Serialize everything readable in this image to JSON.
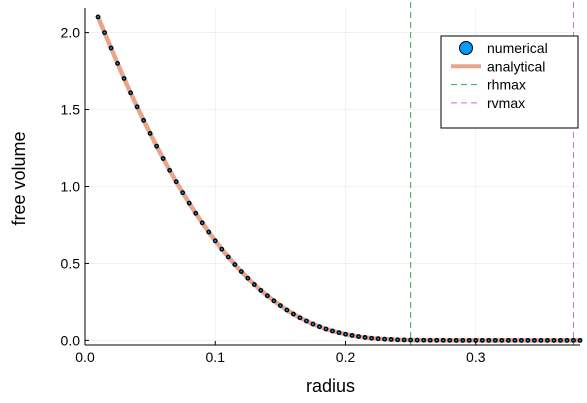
{
  "chart_data": {
    "type": "line",
    "title": "",
    "xlabel": "radius",
    "ylabel": "free volume",
    "xlim": [
      0.0,
      0.38
    ],
    "ylim": [
      -0.03,
      2.16
    ],
    "xticks": [
      0.0,
      0.1,
      0.2,
      0.3
    ],
    "yticks": [
      0.0,
      0.5,
      1.0,
      1.5,
      2.0
    ],
    "xtick_labels": [
      "0.0",
      "0.1",
      "0.2",
      "0.3"
    ],
    "ytick_labels": [
      "0.0",
      "0.5",
      "1.0",
      "1.5",
      "2.0"
    ],
    "grid": true,
    "legend_position": "top-right",
    "series": [
      {
        "name": "numerical",
        "kind": "scatter",
        "color": "#009AFA",
        "x": [
          0.01,
          0.015,
          0.02,
          0.025,
          0.03,
          0.035,
          0.04,
          0.045,
          0.05,
          0.055,
          0.06,
          0.065,
          0.07,
          0.075,
          0.08,
          0.085,
          0.09,
          0.095,
          0.1,
          0.105,
          0.11,
          0.115,
          0.12,
          0.125,
          0.13,
          0.135,
          0.14,
          0.145,
          0.15,
          0.155,
          0.16,
          0.165,
          0.17,
          0.175,
          0.18,
          0.185,
          0.19,
          0.195,
          0.2,
          0.205,
          0.21,
          0.215,
          0.22,
          0.225,
          0.23,
          0.235,
          0.24,
          0.245,
          0.25,
          0.255,
          0.26,
          0.265,
          0.27,
          0.275,
          0.28,
          0.285,
          0.29,
          0.295,
          0.3,
          0.305,
          0.31,
          0.315,
          0.32,
          0.325,
          0.33,
          0.335,
          0.34,
          0.345,
          0.35,
          0.355,
          0.36,
          0.365,
          0.37,
          0.375,
          0.38
        ],
        "y": [
          2.102,
          2.0,
          1.9,
          1.8,
          1.702,
          1.609,
          1.518,
          1.43,
          1.345,
          1.262,
          1.182,
          1.105,
          1.031,
          0.96,
          0.892,
          0.826,
          0.764,
          0.704,
          0.647,
          0.593,
          0.542,
          0.493,
          0.447,
          0.404,
          0.363,
          0.325,
          0.29,
          0.257,
          0.226,
          0.197,
          0.171,
          0.147,
          0.126,
          0.106,
          0.089,
          0.074,
          0.061,
          0.05,
          0.04,
          0.032,
          0.025,
          0.019,
          0.014,
          0.011,
          0.008,
          0.006,
          0.004,
          0.003,
          0.002,
          0.0015,
          0.001,
          0.0007,
          0.0005,
          0.0003,
          0.0002,
          0.0001,
          0.0001,
          0.0,
          0.0,
          0.0,
          0.0,
          0.0,
          0.0,
          0.0,
          0.0,
          0.0,
          0.0,
          0.0,
          0.0,
          0.0,
          0.0,
          0.0,
          0.0,
          0.0,
          0.0
        ]
      },
      {
        "name": "analytical",
        "kind": "line",
        "color": "#E9A58A",
        "x": [
          0.01,
          0.015,
          0.02,
          0.025,
          0.03,
          0.035,
          0.04,
          0.045,
          0.05,
          0.055,
          0.06,
          0.065,
          0.07,
          0.075,
          0.08,
          0.085,
          0.09,
          0.095,
          0.1,
          0.105,
          0.11,
          0.115,
          0.12,
          0.125,
          0.13,
          0.135,
          0.14,
          0.145,
          0.15,
          0.155,
          0.16,
          0.165,
          0.17,
          0.175,
          0.18,
          0.185,
          0.19,
          0.195,
          0.2,
          0.205,
          0.21,
          0.215,
          0.22,
          0.225,
          0.23,
          0.235,
          0.24,
          0.245,
          0.25,
          0.255,
          0.26,
          0.265,
          0.27,
          0.275,
          0.28,
          0.285,
          0.29,
          0.295,
          0.3,
          0.305,
          0.31,
          0.315,
          0.32,
          0.325,
          0.33,
          0.335,
          0.34,
          0.345,
          0.35,
          0.355,
          0.36,
          0.365,
          0.37,
          0.375,
          0.38
        ],
        "y": [
          2.102,
          2.0,
          1.9,
          1.8,
          1.702,
          1.609,
          1.518,
          1.43,
          1.345,
          1.262,
          1.182,
          1.105,
          1.031,
          0.96,
          0.892,
          0.826,
          0.764,
          0.704,
          0.647,
          0.593,
          0.542,
          0.493,
          0.447,
          0.404,
          0.363,
          0.325,
          0.29,
          0.257,
          0.226,
          0.197,
          0.171,
          0.147,
          0.126,
          0.106,
          0.089,
          0.074,
          0.061,
          0.05,
          0.04,
          0.032,
          0.025,
          0.019,
          0.014,
          0.011,
          0.008,
          0.006,
          0.004,
          0.003,
          0.002,
          0.0015,
          0.001,
          0.0007,
          0.0005,
          0.0003,
          0.0002,
          0.0001,
          0.0001,
          0.0,
          0.0,
          0.0,
          0.0,
          0.0,
          0.0,
          0.0,
          0.0,
          0.0,
          0.0,
          0.0,
          0.0,
          0.0,
          0.0,
          0.0,
          0.0,
          0.0,
          0.0
        ]
      },
      {
        "name": "rhmax",
        "kind": "vline",
        "color": "#3DA44D",
        "x": 0.25
      },
      {
        "name": "rvmax",
        "kind": "vline",
        "color": "#C271D2",
        "x": 0.375
      }
    ]
  }
}
